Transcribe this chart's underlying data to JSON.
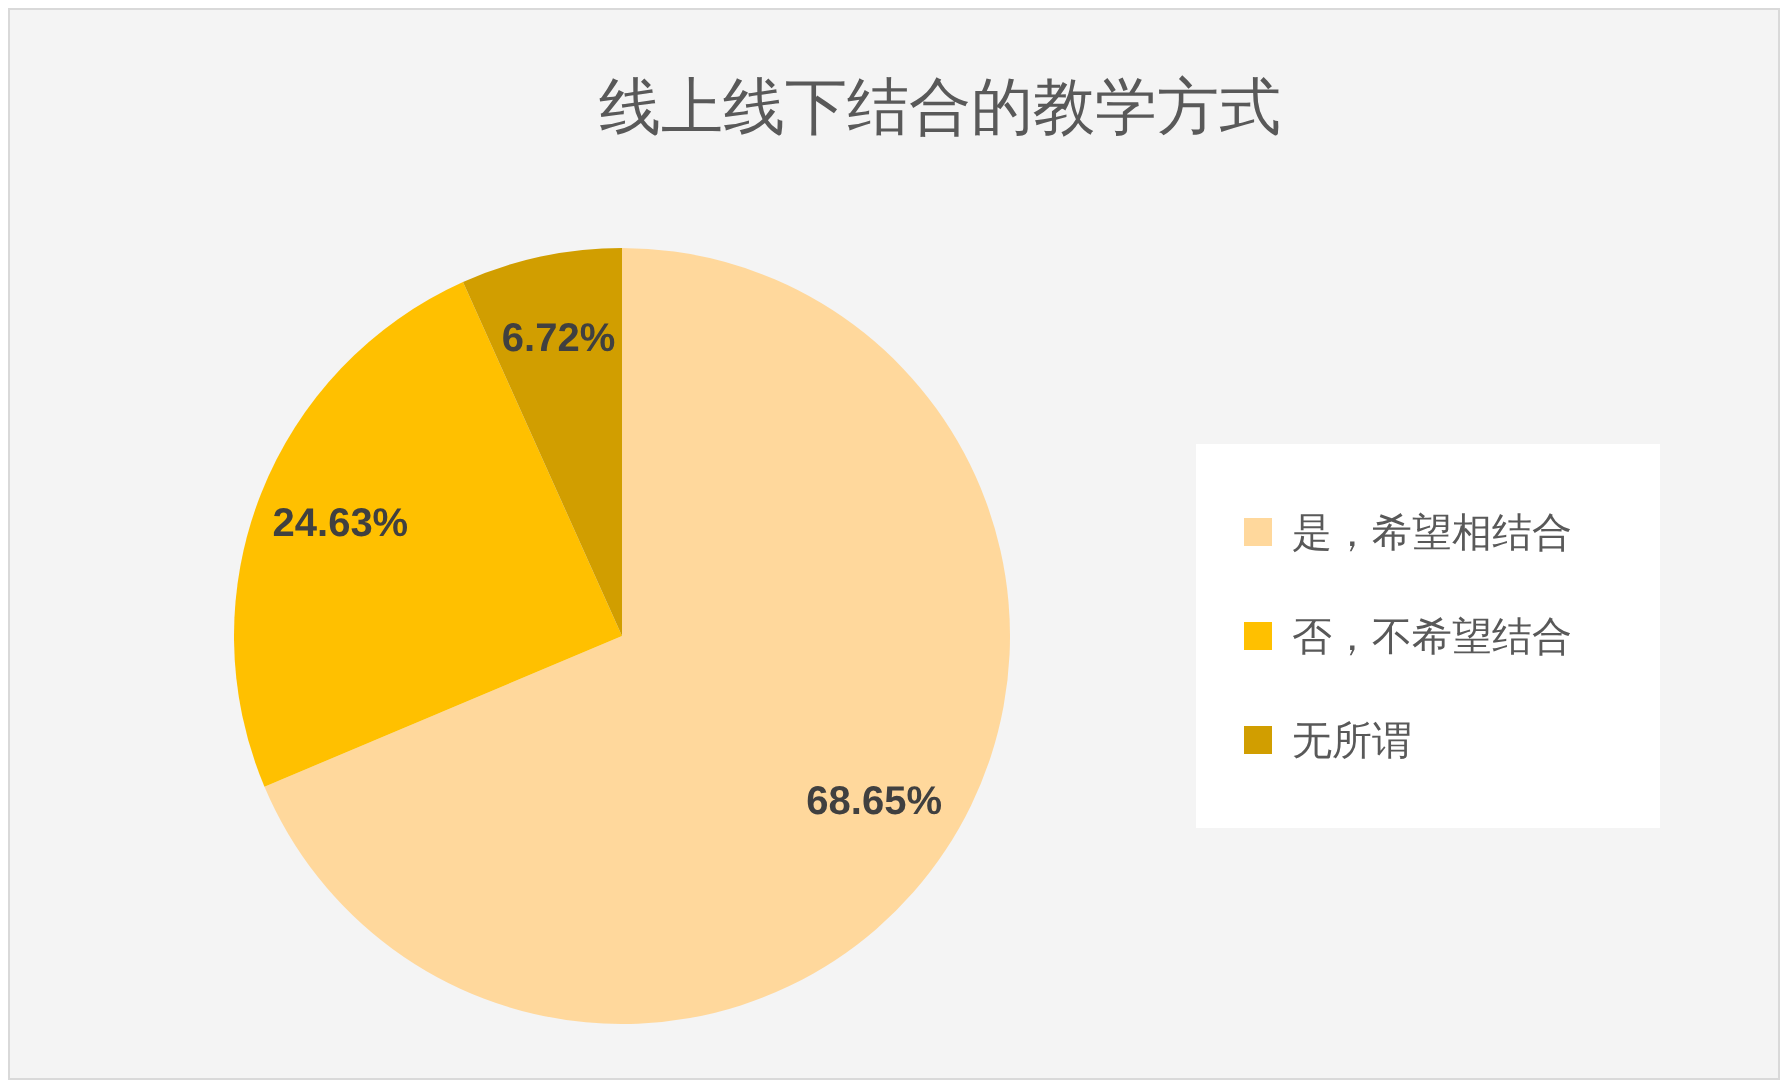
{
  "chart_data": {
    "type": "pie",
    "title": "线上线下结合的教学方式",
    "categories": [
      "是，希望相结合",
      "否，不希望结合",
      "无所谓"
    ],
    "values": [
      68.65,
      24.63,
      6.72
    ],
    "colors": [
      "#ffd89c",
      "#ffc000",
      "#d19e00"
    ],
    "value_labels": [
      "68.65%",
      "24.63%",
      "6.72%"
    ],
    "legend": "right"
  }
}
